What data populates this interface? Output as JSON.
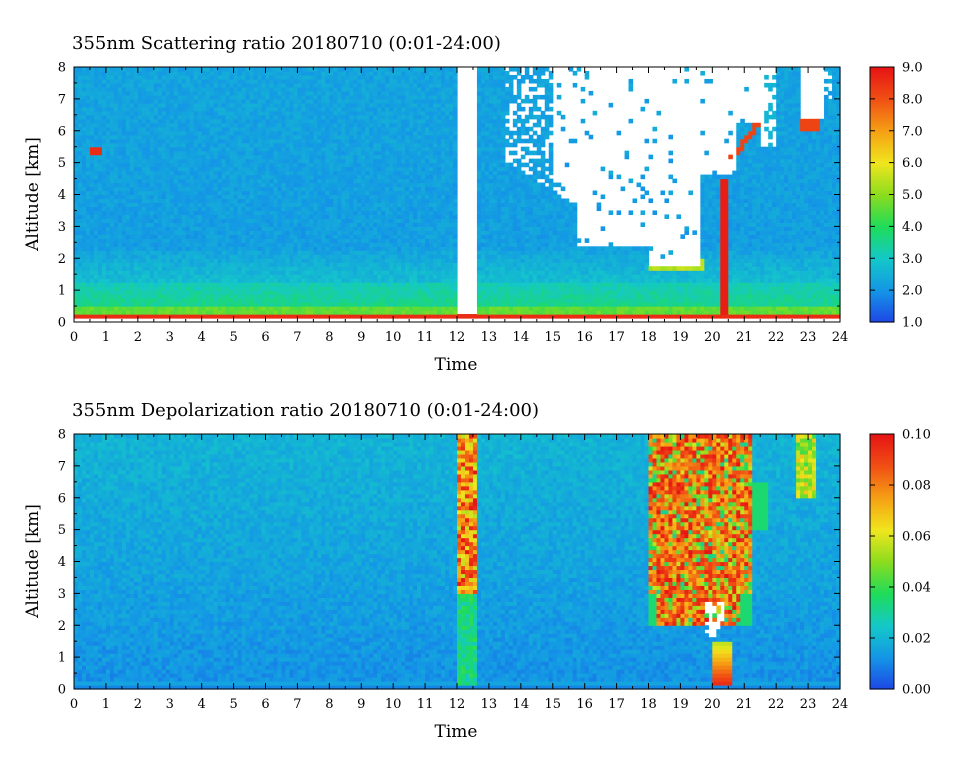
{
  "chart_data": [
    {
      "type": "heatmap",
      "title": "355nm Scattering ratio  20180710 (0:01-24:00)",
      "xlabel": "Time",
      "ylabel": "Altitude [km]",
      "xlim": [
        0,
        24
      ],
      "ylim": [
        0,
        8
      ],
      "x_ticks": [
        "0",
        "1",
        "2",
        "3",
        "4",
        "5",
        "6",
        "7",
        "8",
        "9",
        "10",
        "11",
        "12",
        "13",
        "14",
        "15",
        "16",
        "17",
        "18",
        "19",
        "20",
        "21",
        "22",
        "23",
        "24"
      ],
      "y_ticks": [
        "0",
        "1",
        "2",
        "3",
        "4",
        "5",
        "6",
        "7",
        "8"
      ],
      "colorbar": {
        "min": 1.0,
        "max": 9.0,
        "ticks": [
          "1.0",
          "2.0",
          "3.0",
          "4.0",
          "5.0",
          "6.0",
          "7.0",
          "8.0",
          "9.0"
        ],
        "colors": [
          "#1e46e6",
          "#1496e6",
          "#14c8c8",
          "#1edc5a",
          "#8cdc1e",
          "#f0e61e",
          "#f5a014",
          "#f05014",
          "#e61414"
        ]
      },
      "features": [
        {
          "kind": "aerosol-layer",
          "t_start": 0,
          "t_end": 24,
          "alt_top": 1.3,
          "value": 3.5
        },
        {
          "kind": "no-data",
          "t_start": 12.0,
          "t_end": 12.6,
          "alt_bottom": 0.3,
          "alt_top": 8
        },
        {
          "kind": "cloud",
          "t_start": 13.5,
          "t_end": 21.5,
          "alt_bottom": 2.0,
          "alt_top": 8,
          "value": 9.0
        },
        {
          "kind": "cloud",
          "t_start": 0.6,
          "t_end": 0.8,
          "alt_bottom": 5.3,
          "alt_top": 5.45,
          "value": 8.0
        },
        {
          "kind": "cloud",
          "t_start": 22.7,
          "t_end": 23.4,
          "alt_bottom": 6.1,
          "alt_top": 6.3,
          "value": 8.0
        },
        {
          "kind": "cloud",
          "t_start": 20.0,
          "t_end": 20.7,
          "alt_bottom": 0.3,
          "alt_top": 4.5,
          "value": 9.0
        }
      ]
    },
    {
      "type": "heatmap",
      "title": "355nm Depolarization ratio  20180710 (0:01-24:00)",
      "xlabel": "Time",
      "ylabel": "Altitude [km]",
      "xlim": [
        0,
        24
      ],
      "ylim": [
        0,
        8
      ],
      "x_ticks": [
        "0",
        "1",
        "2",
        "3",
        "4",
        "5",
        "6",
        "7",
        "8",
        "9",
        "10",
        "11",
        "12",
        "13",
        "14",
        "15",
        "16",
        "17",
        "18",
        "19",
        "20",
        "21",
        "22",
        "23",
        "24"
      ],
      "y_ticks": [
        "0",
        "1",
        "2",
        "3",
        "4",
        "5",
        "6",
        "7",
        "8"
      ],
      "colorbar": {
        "min": 0.0,
        "max": 0.1,
        "ticks": [
          "0.00",
          "0.02",
          "0.04",
          "0.06",
          "0.08",
          "0.10"
        ],
        "colors": [
          "#1e46e6",
          "#1496e6",
          "#14c8c8",
          "#1edc5a",
          "#8cdc1e",
          "#f0e61e",
          "#f5a014",
          "#f05014",
          "#e61414"
        ]
      },
      "features": [
        {
          "kind": "ice-cloud",
          "t_start": 12.0,
          "t_end": 12.6,
          "alt_bottom": 3.0,
          "alt_top": 8,
          "value": 0.09
        },
        {
          "kind": "ice-cloud",
          "t_start": 18.0,
          "t_end": 21.3,
          "alt_bottom": 2.0,
          "alt_top": 8,
          "value": 0.1
        },
        {
          "kind": "dust-plume",
          "t_start": 20.0,
          "t_end": 20.6,
          "alt_bottom": 0.2,
          "alt_top": 1.5,
          "value": 0.06
        },
        {
          "kind": "no-data",
          "t_start": 19.7,
          "t_end": 20.4,
          "alt_bottom": 1.6,
          "alt_top": 2.8
        }
      ]
    }
  ]
}
